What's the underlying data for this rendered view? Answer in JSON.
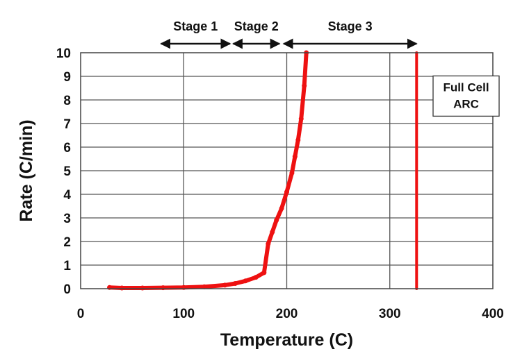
{
  "chart_data": {
    "type": "line",
    "xlabel": "Temperature (C)",
    "ylabel": "Rate (C/min)",
    "xlim": [
      0,
      400
    ],
    "ylim": [
      0,
      10
    ],
    "x_ticks": [
      0,
      100,
      200,
      300,
      400
    ],
    "x_tick_labels": [
      "0",
      "100",
      "200",
      "300",
      "400"
    ],
    "y_ticks": [
      0,
      1,
      2,
      3,
      4,
      5,
      6,
      7,
      8,
      9,
      10
    ],
    "y_tick_labels": [
      "0",
      "1",
      "2",
      "3",
      "4",
      "5",
      "6",
      "7",
      "8",
      "9",
      "10"
    ],
    "grid": {
      "horizontal": true,
      "vertical_x": [
        100,
        200,
        300
      ]
    },
    "series": [
      {
        "color": "#ee1111",
        "x": [
          28,
          40,
          60,
          80,
          100,
          120,
          140,
          150,
          160,
          170,
          178,
          182,
          186,
          190,
          195,
          200,
          205,
          208,
          211,
          214,
          217,
          219
        ],
        "y": [
          0.05,
          0.03,
          0.03,
          0.04,
          0.05,
          0.08,
          0.15,
          0.22,
          0.33,
          0.48,
          0.68,
          1.9,
          2.4,
          2.9,
          3.4,
          4.1,
          4.9,
          5.6,
          6.3,
          7.2,
          8.6,
          10.0
        ]
      },
      {
        "color": "#ee1111",
        "x": [
          326,
          326
        ],
        "y": [
          0,
          10
        ]
      }
    ],
    "stages": [
      {
        "label": "Stage 1",
        "x_start": 78,
        "x_end": 145
      },
      {
        "label": "Stage 2",
        "x_start": 148,
        "x_end": 193
      },
      {
        "label": "Stage 3",
        "x_start": 197,
        "x_end": 326
      }
    ],
    "annotations": [
      {
        "lines": [
          "Full Cell",
          "ARC"
        ],
        "x": 342,
        "y": 8.9
      }
    ]
  }
}
